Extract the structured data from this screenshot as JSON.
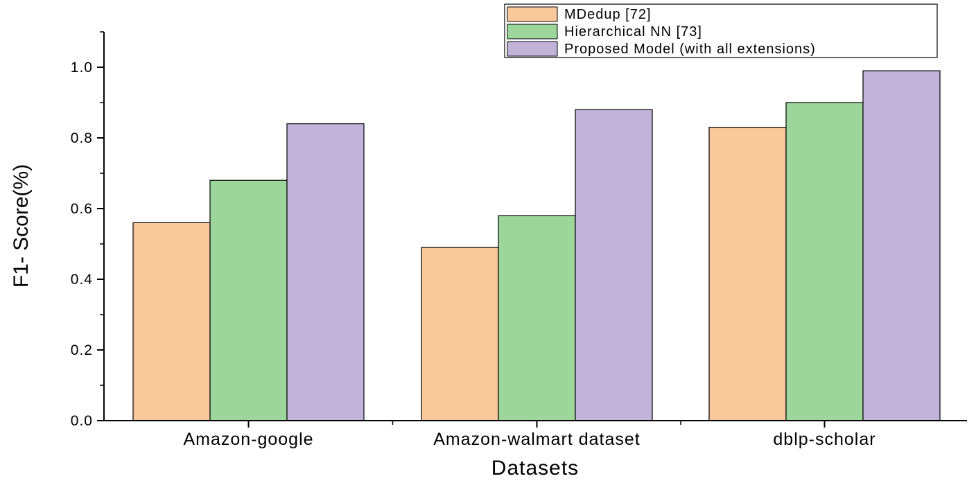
{
  "chart_data": {
    "type": "bar",
    "title": "",
    "xlabel": "Datasets",
    "ylabel": "F1- Score(%)",
    "ylim": [
      0,
      1.1
    ],
    "yticks": [
      {
        "value": 0.0,
        "label": "0.0"
      },
      {
        "value": 0.2,
        "label": "0.2"
      },
      {
        "value": 0.4,
        "label": "0.4"
      },
      {
        "value": 0.6,
        "label": "0.6"
      },
      {
        "value": 0.8,
        "label": "0.8"
      },
      {
        "value": 1.0,
        "label": "1.0"
      }
    ],
    "categories": [
      "Amazon-google",
      "Amazon-walmart dataset",
      "dblp-scholar"
    ],
    "series": [
      {
        "name": "MDedup [72]",
        "color": "#f9c89b",
        "values": [
          0.56,
          0.49,
          0.83
        ]
      },
      {
        "name": "Hierarchical NN [73]",
        "color": "#9dd69a",
        "values": [
          0.68,
          0.58,
          0.9
        ]
      },
      {
        "name": "Proposed Model (with all extensions)",
        "color": "#c2b4d9",
        "values": [
          0.84,
          0.88,
          0.99
        ]
      }
    ],
    "legend_position": "top-right",
    "grid": false
  }
}
